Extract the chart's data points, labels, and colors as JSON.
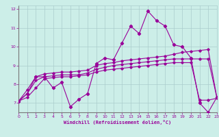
{
  "title": "",
  "xlabel": "Windchill (Refroidissement éolien,°C)",
  "ylabel": "",
  "background_color": "#cceee8",
  "grid_color": "#aacccc",
  "line_color": "#990099",
  "x": [
    0,
    1,
    2,
    3,
    4,
    5,
    6,
    7,
    8,
    9,
    10,
    11,
    12,
    13,
    14,
    15,
    16,
    17,
    18,
    19,
    20,
    21,
    22,
    23
  ],
  "line1": [
    7.1,
    7.5,
    8.4,
    8.4,
    7.8,
    8.1,
    6.8,
    7.2,
    7.5,
    9.1,
    9.4,
    9.3,
    10.2,
    11.1,
    10.7,
    11.9,
    11.4,
    11.1,
    10.1,
    10.0,
    9.4,
    7.0,
    6.5,
    7.3
  ],
  "line2": [
    7.1,
    7.7,
    8.4,
    8.55,
    8.6,
    8.65,
    8.65,
    8.7,
    8.75,
    9.0,
    9.1,
    9.15,
    9.25,
    9.3,
    9.35,
    9.4,
    9.45,
    9.5,
    9.6,
    9.7,
    9.75,
    9.8,
    9.85,
    7.3
  ],
  "line3": [
    7.1,
    7.5,
    8.2,
    8.4,
    8.45,
    8.5,
    8.5,
    8.5,
    8.6,
    8.8,
    8.9,
    9.0,
    9.05,
    9.1,
    9.15,
    9.2,
    9.25,
    9.3,
    9.35,
    9.35,
    9.35,
    9.35,
    9.35,
    7.3
  ],
  "line4": [
    7.1,
    7.3,
    7.8,
    8.3,
    8.35,
    8.4,
    8.4,
    8.45,
    8.5,
    8.65,
    8.75,
    8.8,
    8.85,
    8.9,
    8.95,
    9.0,
    9.05,
    9.1,
    9.15,
    9.15,
    9.15,
    7.15,
    7.15,
    7.25
  ],
  "ylim": [
    6.5,
    12.2
  ],
  "xlim": [
    0,
    23
  ],
  "yticks": [
    7,
    8,
    9,
    10,
    11,
    12
  ],
  "xticks": [
    0,
    1,
    2,
    3,
    4,
    5,
    6,
    7,
    8,
    9,
    10,
    11,
    12,
    13,
    14,
    15,
    16,
    17,
    18,
    19,
    20,
    21,
    22,
    23
  ]
}
